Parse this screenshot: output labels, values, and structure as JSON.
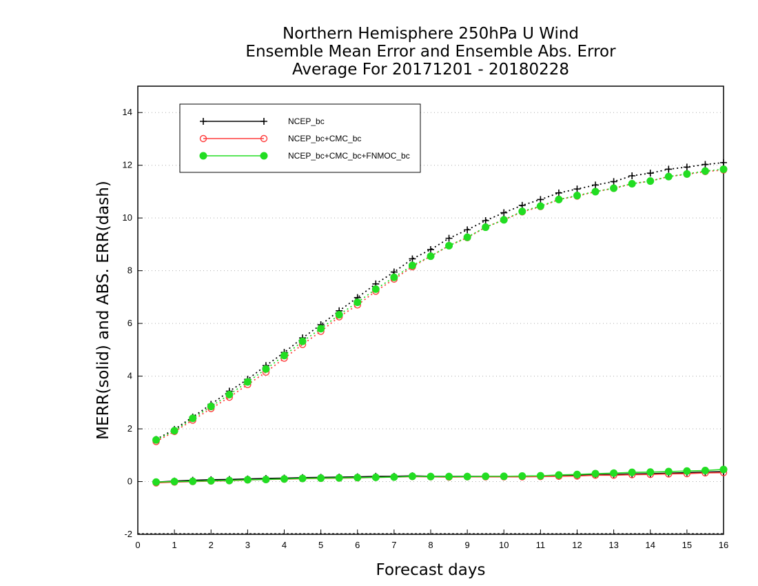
{
  "chart_data": {
    "type": "line",
    "title": [
      "Northern Hemisphere 250hPa U Wind",
      "Ensemble Mean Error and Ensemble Abs. Error",
      "Average For 20171201 - 20180228"
    ],
    "xlabel": "Forecast days",
    "ylabel": "MERR(solid) and ABS. ERR(dash)",
    "xlim": [
      0,
      16
    ],
    "ylim": [
      -2,
      15
    ],
    "x_ticks": [
      "0",
      "1",
      "2",
      "3",
      "4",
      "5",
      "6",
      "7",
      "8",
      "9",
      "10",
      "11",
      "12",
      "13",
      "14",
      "15",
      "16"
    ],
    "y_ticks": [
      "-2",
      "0",
      "2",
      "4",
      "6",
      "8",
      "10",
      "12",
      "14"
    ],
    "grid": "horizontal dotted",
    "legend_position": "top-left",
    "x": [
      0.5,
      1,
      1.5,
      2,
      2.5,
      3,
      3.5,
      4,
      4.5,
      5,
      5.5,
      6,
      6.5,
      7,
      7.5,
      8,
      8.5,
      9,
      9.5,
      10,
      10.5,
      11,
      11.5,
      12,
      12.5,
      13,
      13.5,
      14,
      14.5,
      15,
      15.5,
      16
    ],
    "series": [
      {
        "name": "NCEP_bc",
        "color": "#000000",
        "marker": "plus",
        "merr": [
          -0.02,
          0.02,
          0.05,
          0.07,
          0.08,
          0.1,
          0.12,
          0.13,
          0.15,
          0.16,
          0.17,
          0.18,
          0.2,
          0.2,
          0.22,
          0.2,
          0.2,
          0.2,
          0.2,
          0.2,
          0.2,
          0.21,
          0.22,
          0.24,
          0.26,
          0.27,
          0.29,
          0.3,
          0.32,
          0.34,
          0.36,
          0.38
        ],
        "abs_err": [
          1.6,
          1.98,
          2.45,
          2.93,
          3.43,
          3.88,
          4.4,
          4.9,
          5.45,
          5.95,
          6.48,
          6.98,
          7.5,
          7.95,
          8.45,
          8.8,
          9.23,
          9.55,
          9.9,
          10.2,
          10.48,
          10.7,
          10.95,
          11.1,
          11.25,
          11.38,
          11.6,
          11.7,
          11.85,
          11.93,
          12.03,
          12.1
        ]
      },
      {
        "name": "NCEP_bc+CMC_bc",
        "color": "#ff3b3b",
        "marker": "open-circle",
        "merr": [
          -0.05,
          -0.02,
          0.0,
          0.02,
          0.03,
          0.06,
          0.08,
          0.09,
          0.11,
          0.12,
          0.13,
          0.14,
          0.16,
          0.17,
          0.19,
          0.18,
          0.17,
          0.18,
          0.18,
          0.18,
          0.18,
          0.19,
          0.2,
          0.21,
          0.24,
          0.24,
          0.26,
          0.27,
          0.29,
          0.3,
          0.33,
          0.34
        ],
        "abs_err": [
          1.52,
          1.9,
          2.33,
          2.77,
          3.2,
          3.68,
          4.15,
          4.68,
          5.2,
          5.7,
          6.25,
          6.7,
          7.22,
          7.68,
          8.15,
          8.55,
          8.95,
          9.25,
          9.65,
          9.93,
          10.23,
          10.43,
          10.7,
          10.83,
          11.0,
          11.12,
          11.3,
          11.4,
          11.57,
          11.66,
          11.76,
          11.82
        ]
      },
      {
        "name": "NCEP_bc+CMC_bc+FNMOC_bc",
        "color": "#22dd22",
        "marker": "filled-circle",
        "merr": [
          -0.02,
          0.0,
          0.01,
          0.03,
          0.04,
          0.07,
          0.08,
          0.1,
          0.12,
          0.13,
          0.14,
          0.15,
          0.16,
          0.17,
          0.2,
          0.19,
          0.19,
          0.19,
          0.2,
          0.2,
          0.21,
          0.22,
          0.25,
          0.27,
          0.3,
          0.32,
          0.35,
          0.36,
          0.38,
          0.4,
          0.42,
          0.46
        ],
        "abs_err": [
          1.58,
          1.93,
          2.4,
          2.85,
          3.3,
          3.78,
          4.27,
          4.78,
          5.32,
          5.8,
          6.33,
          6.8,
          7.3,
          7.75,
          8.2,
          8.55,
          8.95,
          9.27,
          9.65,
          9.93,
          10.25,
          10.45,
          10.7,
          10.85,
          11.0,
          11.13,
          11.3,
          11.4,
          11.57,
          11.67,
          11.78,
          11.85
        ]
      }
    ]
  }
}
